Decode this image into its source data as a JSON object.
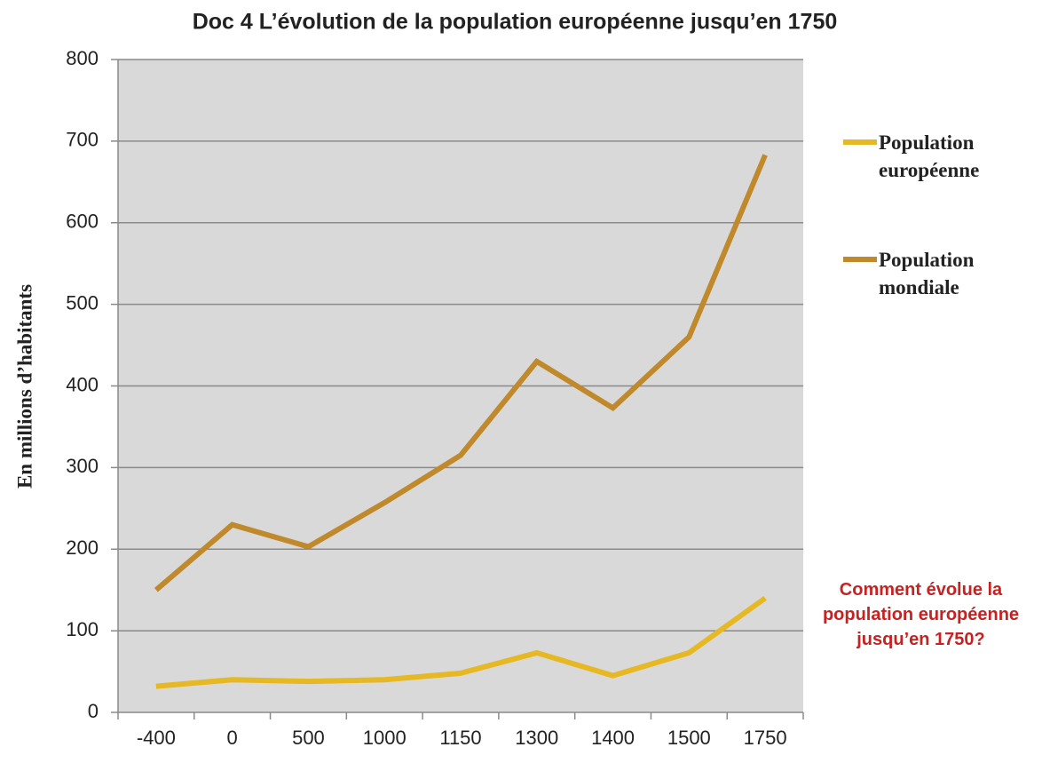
{
  "chart_data": {
    "type": "line",
    "title": "Doc 4 L’évolution de la population européenne jusqu’en 1750",
    "ylabel": "En millions d’habitants",
    "categories": [
      "-400",
      "0",
      "500",
      "1000",
      "1150",
      "1300",
      "1400",
      "1500",
      "1750"
    ],
    "series": [
      {
        "name": "Population européenne",
        "color": "#e6b823",
        "values": [
          32,
          40,
          38,
          40,
          48,
          73,
          45,
          73,
          140
        ]
      },
      {
        "name": "Population mondiale",
        "color": "#c0892b",
        "values": [
          150,
          230,
          203,
          257,
          315,
          430,
          373,
          460,
          683
        ]
      }
    ],
    "ylim": [
      0,
      800
    ],
    "yticks": [
      0,
      100,
      200,
      300,
      400,
      500,
      600,
      700,
      800
    ],
    "grid": true,
    "annotation": "Comment évolue la population européenne jusqu’en 1750?"
  }
}
